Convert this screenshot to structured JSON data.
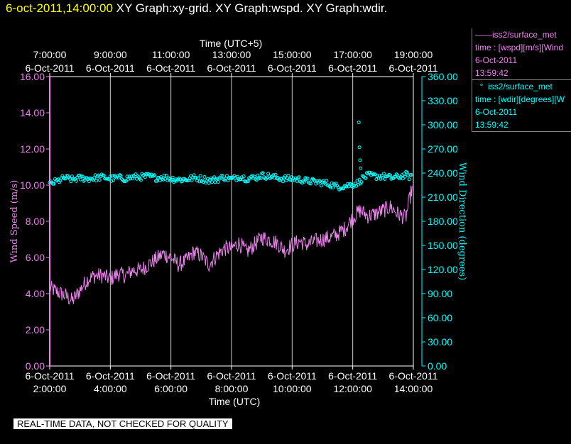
{
  "header": {
    "timestamp": "6-oct-2011,14:00:00",
    "graphs": " XY Graph:xy-grid.  XY Graph:wspd.  XY Graph:wdir."
  },
  "disclaimer": "REAL-TIME DATA, NOT CHECKED FOR QUALITY",
  "legend": {
    "wspd": {
      "name": "iss2/surface_met",
      "line": "time : [wspd][m/s][Wind",
      "date": "6-Oct-2011",
      "time": "13:59:42"
    },
    "wdir": {
      "name": "iss2/surface_met",
      "line": "time : [wdir][degrees][W",
      "date": "6-Oct-2011",
      "time": "13:59:42"
    }
  },
  "chart_data": {
    "type": "line",
    "grid": "vertical",
    "colors": {
      "wspd": "#ee82ee",
      "wdir": "#00ffff",
      "grid": "#cccccc"
    },
    "xlabel_bottom": "Time (UTC)",
    "xlabel_top": "Time (UTC+5)",
    "ylabel_left": "Wind Speed (m/s)",
    "ylabel_right": "Wind Direction (degrees)",
    "xlim_hours_utc": [
      2,
      14
    ],
    "ylim_left": [
      0,
      16
    ],
    "ylim_right": [
      0,
      360
    ],
    "y_ticks_left": [
      "0.00",
      "2.00",
      "4.00",
      "6.00",
      "8.00",
      "10.00",
      "12.00",
      "14.00",
      "16.00"
    ],
    "y_ticks_right": [
      "0.00",
      "30.00",
      "60.00",
      "90.00",
      "120.00",
      "150.00",
      "180.00",
      "210.00",
      "240.00",
      "270.00",
      "300.00",
      "330.00",
      "360.00"
    ],
    "x_ticks_bottom": [
      {
        "date": "6-Oct-2011",
        "time": "2:00:00"
      },
      {
        "date": "6-Oct-2011",
        "time": "4:00:00"
      },
      {
        "date": "6-Oct-2011",
        "time": "6:00:00"
      },
      {
        "date": "6-Oct-2011",
        "time": "8:00:00"
      },
      {
        "date": "6-Oct-2011",
        "time": "10:00:00"
      },
      {
        "date": "6-Oct-2011",
        "time": "12:00:00"
      },
      {
        "date": "6-Oct-2011",
        "time": "14:00:00"
      }
    ],
    "x_ticks_top": [
      {
        "time": "7:00:00",
        "date": "6-Oct-2011"
      },
      {
        "time": "9:00:00",
        "date": "6-Oct-2011"
      },
      {
        "time": "11:00:00",
        "date": "6-Oct-2011"
      },
      {
        "time": "13:00:00",
        "date": "6-Oct-2011"
      },
      {
        "time": "15:00:00",
        "date": "6-Oct-2011"
      },
      {
        "time": "17:00:00",
        "date": "6-Oct-2011"
      },
      {
        "time": "19:00:00",
        "date": "6-Oct-2011"
      }
    ],
    "series": [
      {
        "key": "wspd",
        "axis": "left",
        "style": "line",
        "x_hours_utc": [
          2.0,
          2.25,
          2.5,
          2.75,
          3.0,
          3.25,
          3.5,
          3.75,
          4.0,
          4.25,
          4.5,
          4.75,
          5.0,
          5.25,
          5.5,
          5.75,
          6.0,
          6.25,
          6.5,
          6.75,
          7.0,
          7.25,
          7.5,
          7.75,
          8.0,
          8.25,
          8.5,
          8.75,
          9.0,
          9.25,
          9.5,
          9.75,
          10.0,
          10.25,
          10.5,
          10.75,
          11.0,
          11.25,
          11.5,
          11.75,
          12.0,
          12.25,
          12.5,
          12.75,
          13.0,
          13.25,
          13.5,
          13.75,
          13.95
        ],
        "y": [
          4.3,
          4.1,
          3.9,
          3.6,
          4.2,
          4.8,
          5.0,
          5.0,
          4.8,
          5.1,
          5.0,
          5.3,
          5.3,
          5.6,
          5.9,
          6.2,
          6.0,
          5.6,
          5.8,
          6.3,
          6.1,
          5.6,
          6.1,
          6.5,
          6.5,
          6.8,
          6.3,
          6.7,
          7.1,
          7.0,
          6.8,
          6.4,
          6.7,
          6.9,
          6.7,
          6.9,
          7.0,
          7.1,
          7.3,
          7.6,
          8.2,
          8.6,
          8.3,
          8.4,
          8.6,
          8.8,
          8.4,
          8.2,
          9.8
        ],
        "noise": 0.45
      },
      {
        "key": "wdir",
        "axis": "right",
        "style": "points",
        "x_hours_utc": [
          2.0,
          2.25,
          2.5,
          2.75,
          3.0,
          3.25,
          3.5,
          3.75,
          4.0,
          4.25,
          4.5,
          4.75,
          5.0,
          5.25,
          5.5,
          5.75,
          6.0,
          6.25,
          6.5,
          6.75,
          7.0,
          7.25,
          7.5,
          7.75,
          8.0,
          8.25,
          8.5,
          8.75,
          9.0,
          9.25,
          9.5,
          9.75,
          10.0,
          10.25,
          10.5,
          10.75,
          11.0,
          11.25,
          11.5,
          11.75,
          12.0,
          12.2,
          12.3,
          12.5,
          12.75,
          13.0,
          13.25,
          13.5,
          13.75,
          13.95
        ],
        "y": [
          226,
          230,
          234,
          232,
          234,
          233,
          234,
          235,
          233,
          234,
          233,
          235,
          235,
          236,
          234,
          235,
          233,
          232,
          232,
          234,
          233,
          231,
          232,
          235,
          232,
          236,
          233,
          234,
          237,
          236,
          234,
          233,
          233,
          232,
          230,
          229,
          228,
          226,
          223,
          224,
          226,
          228,
          233,
          237,
          236,
          236,
          234,
          235,
          238,
          234
        ],
        "noise": 4.0,
        "outliers": [
          {
            "x": 12.2,
            "y": 303
          },
          {
            "x": 12.22,
            "y": 272
          },
          {
            "x": 12.24,
            "y": 256
          },
          {
            "x": 12.26,
            "y": 246
          }
        ]
      }
    ]
  }
}
